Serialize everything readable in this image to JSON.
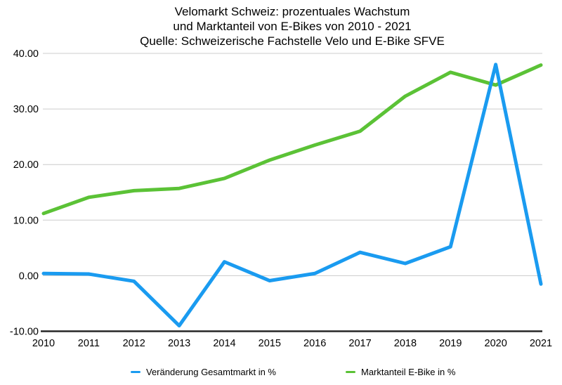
{
  "title": {
    "line1": "Velomarkt Schweiz: prozentuales Wachstum",
    "line2": "und Marktanteil von E-Bikes von 2010 - 2021",
    "line3": "Quelle: Schweizerische Fachstelle Velo und E-Bike SFVE"
  },
  "colors": {
    "blue": "#1a9bf0",
    "green": "#5bc236",
    "grid": "#cccccc",
    "axis": "#262626",
    "text": "#000000"
  },
  "legend": [
    {
      "label": "Veränderung Gesamtmarkt in %",
      "color": "#1a9bf0"
    },
    {
      "label": "Marktanteil E-Bike in %",
      "color": "#5bc236"
    }
  ],
  "chart_data": {
    "type": "line",
    "title": "Velomarkt Schweiz: prozentuales Wachstum und Marktanteil von E-Bikes von 2010 - 2021",
    "subtitle": "Quelle: Schweizerische Fachstelle Velo und E-Bike SFVE",
    "x": [
      2010,
      2011,
      2012,
      2013,
      2014,
      2015,
      2016,
      2017,
      2018,
      2019,
      2020,
      2021
    ],
    "series": [
      {
        "name": "Veränderung Gesamtmarkt in %",
        "color": "#1a9bf0",
        "values": [
          0.4,
          0.3,
          -1.0,
          -9.0,
          2.5,
          -0.9,
          0.4,
          4.2,
          2.2,
          5.2,
          38.0,
          -1.5
        ]
      },
      {
        "name": "Marktanteil E-Bike in %",
        "color": "#5bc236",
        "values": [
          11.2,
          14.1,
          15.3,
          15.7,
          17.5,
          20.8,
          23.5,
          26.0,
          32.3,
          36.6,
          34.3,
          37.9
        ]
      }
    ],
    "xlabel": "",
    "ylabel": "",
    "ylim": [
      -10,
      40
    ],
    "yticks": [
      -10,
      0,
      10,
      20,
      30,
      40
    ],
    "ytick_labels": [
      "-10.00",
      "0.00",
      "10.00",
      "20.00",
      "30.00",
      "40.00"
    ],
    "grid": "horizontal",
    "legend_position": "bottom"
  }
}
